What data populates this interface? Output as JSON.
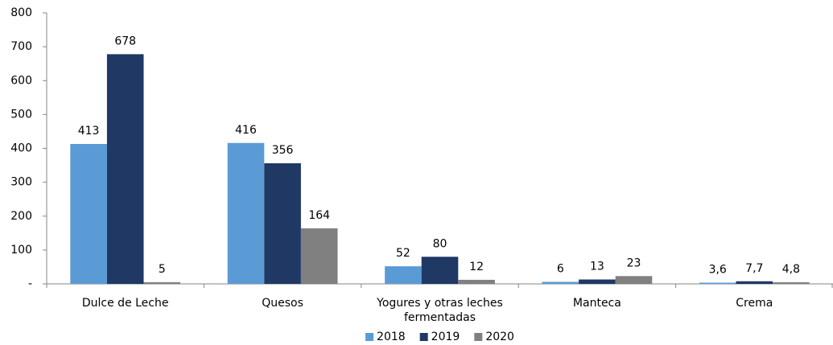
{
  "chart_data": {
    "type": "bar",
    "categories": [
      "Dulce de Leche",
      "Quesos",
      "Yogures y otras leches fermentadas",
      "Manteca",
      "Crema"
    ],
    "series": [
      {
        "name": "2018",
        "color": "#5b9bd5",
        "values": [
          413,
          416,
          52,
          6,
          3.6
        ],
        "value_labels": [
          "413",
          "416",
          "52",
          "6",
          "3,6"
        ]
      },
      {
        "name": "2019",
        "color": "#1f3864",
        "values": [
          678,
          356,
          80,
          13,
          7.7
        ],
        "value_labels": [
          "678",
          "356",
          "80",
          "13",
          "7,7"
        ]
      },
      {
        "name": "2020",
        "color": "#808080",
        "values": [
          5,
          164,
          12,
          23,
          4.8
        ],
        "value_labels": [
          "5",
          "164",
          "12",
          "23",
          "4,8"
        ]
      }
    ],
    "ylim": [
      0,
      800
    ],
    "yticks": [
      {
        "value": 0,
        "label": "-"
      },
      100,
      200,
      300,
      400,
      500,
      600,
      700,
      800
    ],
    "legend": "bottom"
  }
}
